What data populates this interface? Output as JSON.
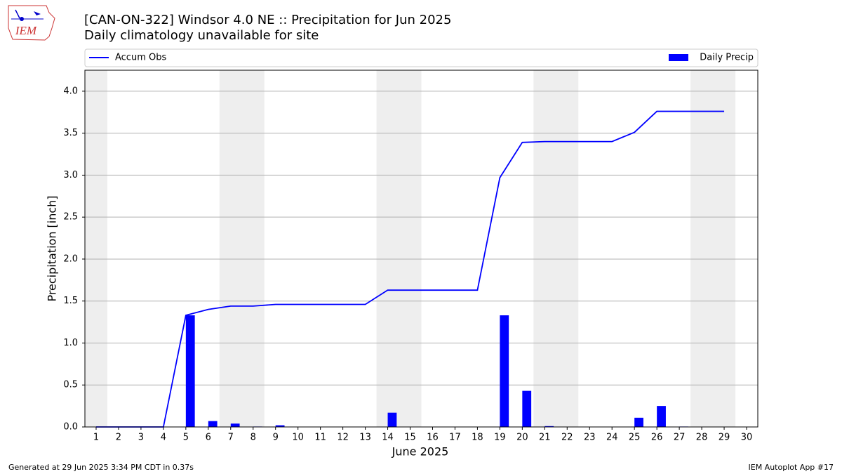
{
  "chart_data": {
    "type": "combo",
    "title": "[CAN-ON-322] Windsor 4.0 NE :: Precipitation for Jun 2025",
    "subtitle": "Daily climatology unavailable for site",
    "xlabel": "June 2025",
    "ylabel": "Precipitation [inch]",
    "x": [
      1,
      2,
      3,
      4,
      5,
      6,
      7,
      8,
      9,
      10,
      11,
      12,
      13,
      14,
      15,
      16,
      17,
      18,
      19,
      20,
      21,
      22,
      23,
      24,
      25,
      26,
      27,
      28,
      29,
      30
    ],
    "series": [
      {
        "name": "Accum Obs",
        "type": "line",
        "color": "#0000ff",
        "values": [
          0,
          0,
          0,
          0,
          1.33,
          1.4,
          1.44,
          1.44,
          1.46,
          1.46,
          1.46,
          1.46,
          1.46,
          1.63,
          1.63,
          1.63,
          1.63,
          1.63,
          2.97,
          3.39,
          3.4,
          3.4,
          3.4,
          3.4,
          3.51,
          3.76,
          3.76,
          3.76,
          3.76,
          null
        ]
      },
      {
        "name": "Daily Precip",
        "type": "bar",
        "color": "#0000ff",
        "values": [
          0,
          0,
          0,
          0,
          1.33,
          0.07,
          0.04,
          0.005,
          0.02,
          0,
          0,
          0,
          0,
          0.17,
          0,
          0,
          0,
          0,
          1.33,
          0.43,
          0.01,
          0,
          0,
          0,
          0.11,
          0.25,
          0.005,
          0,
          0,
          null
        ]
      }
    ],
    "xlim": [
      0.5,
      30.5
    ],
    "xticks": [
      1,
      2,
      3,
      4,
      5,
      6,
      7,
      8,
      9,
      10,
      11,
      12,
      13,
      14,
      15,
      16,
      17,
      18,
      19,
      20,
      21,
      22,
      23,
      24,
      25,
      26,
      27,
      28,
      29,
      30
    ],
    "ylim": [
      0,
      4.25
    ],
    "yticks": [
      {
        "value": 0,
        "label": "0.0"
      },
      {
        "value": 0.5,
        "label": "0.5"
      },
      {
        "value": 1,
        "label": "1.0"
      },
      {
        "value": 1.5,
        "label": "1.5"
      },
      {
        "value": 2,
        "label": "2.0"
      },
      {
        "value": 2.5,
        "label": "2.5"
      },
      {
        "value": 3,
        "label": "3.0"
      },
      {
        "value": 3.5,
        "label": "3.5"
      },
      {
        "value": 4,
        "label": "4.0"
      }
    ],
    "grid": true,
    "shaded_spans": [
      [
        0.5,
        1.5
      ],
      [
        6.5,
        8.5
      ],
      [
        13.5,
        15.5
      ],
      [
        20.5,
        22.5
      ],
      [
        27.5,
        29.5
      ]
    ],
    "shade_color": "#eeeeee"
  },
  "logo": "IEM",
  "footer": {
    "left": "Generated at 29 Jun 2025 3:34 PM CDT in 0.37s",
    "right": "IEM Autoplot App #17"
  }
}
